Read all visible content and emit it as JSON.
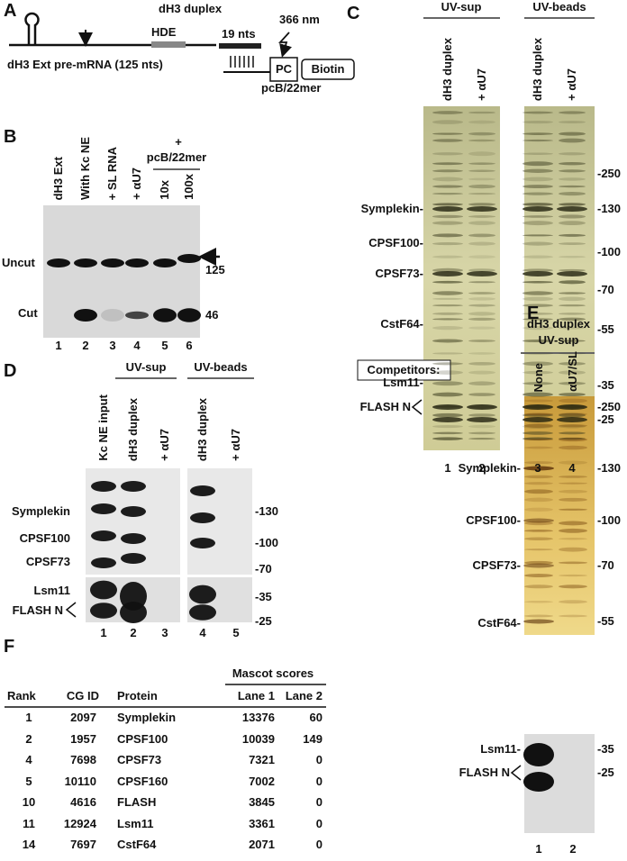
{
  "panel_a": {
    "label": "A",
    "title": "dH3 duplex",
    "hde": "HDE",
    "nts": "19 nts",
    "wavelength": "366 nm",
    "pc": "PC",
    "biotin": "Biotin",
    "pre_mrna": "dH3 Ext pre-mRNA (125 nts)",
    "oligo": "pcB/22mer"
  },
  "panel_b": {
    "label": "B",
    "lanes": [
      "dH3 Ext",
      "With Kc NE",
      "+ SL RNA",
      "+ αU7",
      "10x",
      "100x"
    ],
    "group_plus": "+",
    "group": "pcB/22mer",
    "bands": [
      "Uncut",
      "Cut"
    ],
    "sizes": [
      "125",
      "46"
    ],
    "lane_numbers": [
      "1",
      "2",
      "3",
      "4",
      "5",
      "6"
    ]
  },
  "panel_c": {
    "label": "C",
    "groups": [
      "UV-sup",
      "UV-beads"
    ],
    "lanes": [
      "dH3 duplex",
      "+ αU7",
      "dH3 duplex",
      "+ αU7"
    ],
    "proteins": [
      "Symplekin-",
      "CPSF100-",
      "CPSF73-",
      "CstF64-",
      "Lsm11-",
      "FLASH N"
    ],
    "markers": [
      "-250",
      "-130",
      "-100",
      "-70",
      "-55",
      "-35",
      "-25"
    ],
    "lane_numbers": [
      "1",
      "2",
      "3",
      "4"
    ]
  },
  "panel_d": {
    "label": "D",
    "groups": [
      "UV-sup",
      "UV-beads"
    ],
    "lanes": [
      "Kc NE input",
      "dH3 duplex",
      "+ αU7",
      "dH3 duplex",
      "+ αU7"
    ],
    "proteins": [
      "Symplekin",
      "CPSF100",
      "CPSF73",
      "Lsm11",
      "FLASH N"
    ],
    "markers": [
      "-130",
      "-100",
      "-70",
      "-35",
      "-25"
    ],
    "lane_numbers": [
      "1",
      "2",
      "3",
      "4",
      "5"
    ]
  },
  "panel_e": {
    "label": "E",
    "header": [
      "dH3 duplex",
      "UV-sup"
    ],
    "competitors": "Competitors:",
    "lanes": [
      "None",
      "αU7/SL"
    ],
    "proteins": [
      "Symplekin-",
      "CPSF100-",
      "CPSF73-",
      "CstF64-",
      "Lsm11-",
      "FLASH N"
    ],
    "markers": [
      "-250",
      "-130",
      "-100",
      "-70",
      "-55",
      "-35",
      "-25"
    ],
    "lane_numbers": [
      "1",
      "2"
    ]
  },
  "panel_f": {
    "label": "F",
    "group_header": "Mascot scores",
    "columns": [
      "Rank",
      "CG ID",
      "Protein",
      "Lane 1",
      "Lane 2"
    ],
    "rows": [
      [
        "1",
        "2097",
        "Symplekin",
        "13376",
        "60"
      ],
      [
        "2",
        "1957",
        "CPSF100",
        "10039",
        "149"
      ],
      [
        "4",
        "7698",
        "CPSF73",
        "7321",
        "0"
      ],
      [
        "5",
        "10110",
        "CPSF160",
        "7002",
        "0"
      ],
      [
        "10",
        "4616",
        "FLASH",
        "3845",
        "0"
      ],
      [
        "11",
        "12924",
        "Lsm11",
        "3361",
        "0"
      ],
      [
        "14",
        "7697",
        "CstF64",
        "2071",
        "0"
      ]
    ]
  }
}
